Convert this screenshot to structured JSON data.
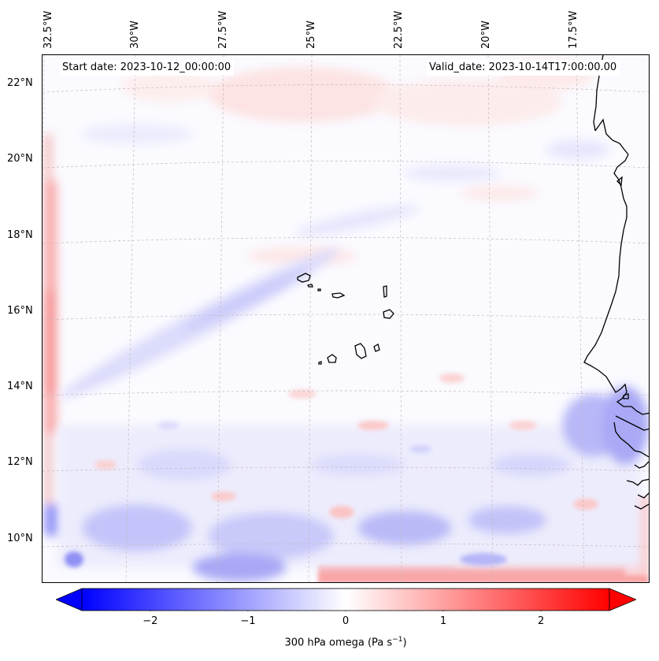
{
  "map": {
    "start_date": "Start date: 2023-10-12_00:00:00",
    "valid_date": "Valid_date: 2023-10-14T17:00:00.00",
    "lon_labels": [
      "32.5°W",
      "30°W",
      "27.5°W",
      "25°W",
      "22.5°W",
      "20°W",
      "17.5°W"
    ],
    "lat_labels": [
      "22°N",
      "20°N",
      "18°N",
      "16°N",
      "14°N",
      "12°N",
      "10°N"
    ],
    "field": "300 hPa omega",
    "coastline_color": "#000000",
    "gridline_color": "#b0b0b0"
  },
  "colorbar": {
    "cmap": "bwr",
    "min": -2.7,
    "max": 2.7,
    "ticks": [
      "−2",
      "−1",
      "0",
      "1",
      "2"
    ],
    "tick_values": [
      -2,
      -1,
      0,
      1,
      2
    ],
    "label_main": "300 hPa omega (Pa s",
    "label_sup": "−1",
    "label_end": ")",
    "low_color": "#0000ff",
    "mid_color": "#ffffff",
    "high_color": "#ff0000"
  }
}
